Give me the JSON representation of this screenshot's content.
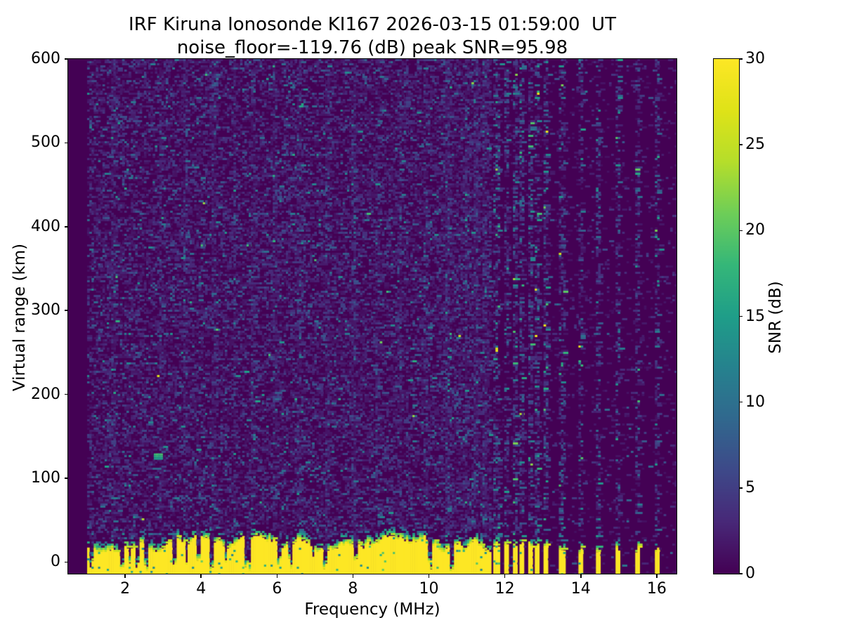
{
  "chart_data": {
    "type": "heatmap",
    "title_line1": "IRF Kiruna Ionosonde KI167 2026-03-15 01:59:00  UT",
    "title_line2": "noise_floor=-119.76 (dB) peak SNR=95.98",
    "station": "IRF Kiruna Ionosonde KI167",
    "timestamp_ut": "2026-03-15 01:59:00 UT",
    "noise_floor_db": -119.76,
    "peak_snr_db": 95.98,
    "xlabel": "Frequency (MHz)",
    "ylabel": "Virtual range (km)",
    "colorbar_label": "SNR (dB)",
    "x_ticks": [
      2,
      4,
      6,
      8,
      10,
      12,
      14,
      16
    ],
    "y_ticks": [
      0,
      100,
      200,
      300,
      400,
      500,
      600
    ],
    "colorbar_ticks": [
      0,
      5,
      10,
      15,
      20,
      25,
      30
    ],
    "xlim": [
      0.5,
      16.52
    ],
    "ylim": [
      -14,
      600
    ],
    "clim": [
      0,
      30
    ],
    "colormap": "viridis",
    "colormap_stops": [
      "#440154",
      "#482878",
      "#3e4989",
      "#31688e",
      "#26828e",
      "#1f9e89",
      "#35b779",
      "#6ece58",
      "#b5de2b",
      "#dfe318",
      "#fde725"
    ],
    "sweep": {
      "freq_start_mhz": 1.0,
      "freq_end_mhz": 16.5,
      "freq_step_mhz": 0.0575,
      "range_bin_km": 2.5
    },
    "features": {
      "no_data_below_mhz": 1.0,
      "ground_clutter_band": {
        "description": "saturated near-range echo band with ragged dithered top edge",
        "freq_span_mhz": [
          1.0,
          11.62
        ],
        "top_range_km_min": 17,
        "top_range_km_max": 36,
        "snr_db": 30,
        "deep_notch_freqs_mhz": [
          1.1,
          1.9,
          2.3,
          2.55,
          3.25,
          3.9,
          4.25,
          5.2,
          6.05,
          6.3,
          7.25,
          8.05,
          10.0,
          10.6
        ]
      },
      "interference_comb_mhz": [
        11.75,
        12.01,
        12.23,
        12.43,
        12.64,
        12.84,
        13.04
      ],
      "interference_isolated_mhz": [
        13.48,
        13.97,
        14.45,
        14.95,
        15.46,
        16.0
      ],
      "noise_stripe_freqs_mhz": [
        1.65,
        2.9,
        3.55,
        4.3,
        4.85,
        5.35,
        5.9,
        6.55,
        7.3,
        8.0,
        8.6,
        9.2,
        9.9,
        10.45,
        10.95,
        11.2,
        11.45
      ],
      "background_noise_snr_db": [
        0,
        9
      ],
      "dense_noise_below_mhz": 11.62,
      "echo_blobs": [
        {
          "freq_mhz": 2.87,
          "range_km": 127,
          "snr_db": 18
        },
        {
          "freq_mhz": 3.06,
          "range_km": 136,
          "snr_db": 13
        }
      ]
    }
  }
}
